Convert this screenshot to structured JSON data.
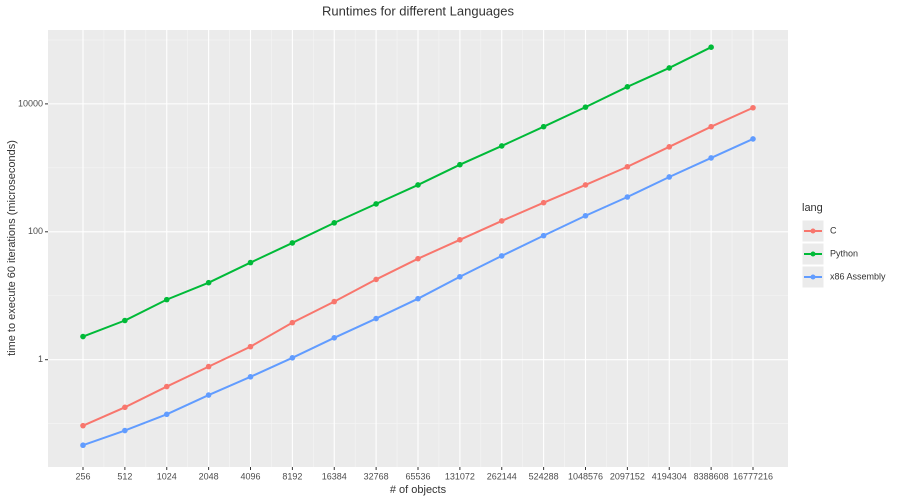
{
  "chart_data": {
    "type": "line",
    "title": "Runtimes for different Languages",
    "x_label": "# of objects",
    "y_label": "time to execute 60 iterations (microseconds)",
    "categories": [
      "256",
      "512",
      "1024",
      "2048",
      "4096",
      "8192",
      "16384",
      "32768",
      "65536",
      "131072",
      "262144",
      "524288",
      "1048576",
      "2097152",
      "4194304",
      "8388608",
      "16777216"
    ],
    "log_scale": true,
    "grid": true,
    "ylim": [
      0.021,
      143000
    ],
    "yticks": [
      1,
      100,
      10000
    ],
    "legend": {
      "title": "lang",
      "position": "right"
    },
    "series": [
      {
        "name": "C",
        "color": "#F8766D",
        "values": [
          0.093,
          0.18,
          0.38,
          0.78,
          1.6,
          3.8,
          8.1,
          18,
          38,
          75,
          148,
          285,
          540,
          1040,
          2130,
          4400,
          8700
        ]
      },
      {
        "name": "Python",
        "color": "#00BA38",
        "values": [
          2.3,
          4.1,
          8.7,
          16,
          33,
          67,
          138,
          273,
          540,
          1120,
          2200,
          4400,
          8900,
          18500,
          36500,
          77000,
          null
        ]
      },
      {
        "name": "x86 Assembly",
        "color": "#619CFF",
        "values": [
          0.046,
          0.078,
          0.14,
          0.28,
          0.54,
          1.07,
          2.2,
          4.4,
          9,
          19.8,
          42,
          87,
          178,
          350,
          720,
          1430,
          2830
        ]
      }
    ]
  }
}
